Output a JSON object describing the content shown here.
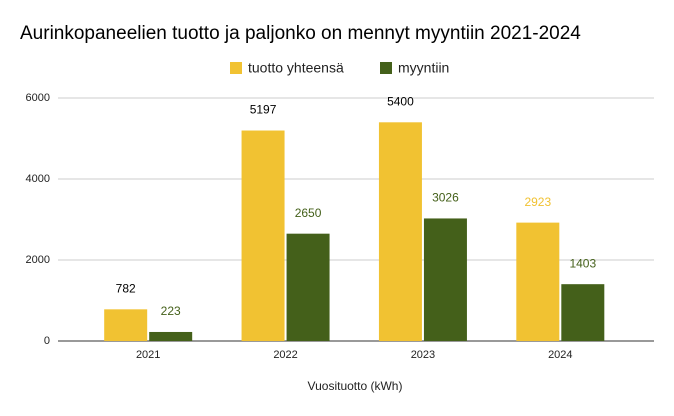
{
  "chart_data": {
    "type": "bar",
    "title": "Aurinkopaneelien tuotto ja paljonko on mennyt myyntiin 2021-2024",
    "x_label": "Vuosituotto (kWh)",
    "categories": [
      "2021",
      "2022",
      "2023",
      "2024"
    ],
    "series": [
      {
        "name": "tuotto yhteensä",
        "color": "#f1c232",
        "values": [
          782,
          5197,
          5400,
          2923
        ],
        "value_label_colors": [
          "#000000",
          "#000000",
          "#000000",
          "#f1c232"
        ]
      },
      {
        "name": "myyntiin",
        "color": "#44601a",
        "values": [
          223,
          2650,
          3026,
          1403
        ],
        "value_label_colors": [
          "#44601a",
          "#44601a",
          "#44601a",
          "#44601a"
        ]
      }
    ],
    "ylim": [
      0,
      6000
    ],
    "yticks": [
      0,
      2000,
      4000,
      6000
    ],
    "grid": true,
    "legend": "top"
  }
}
